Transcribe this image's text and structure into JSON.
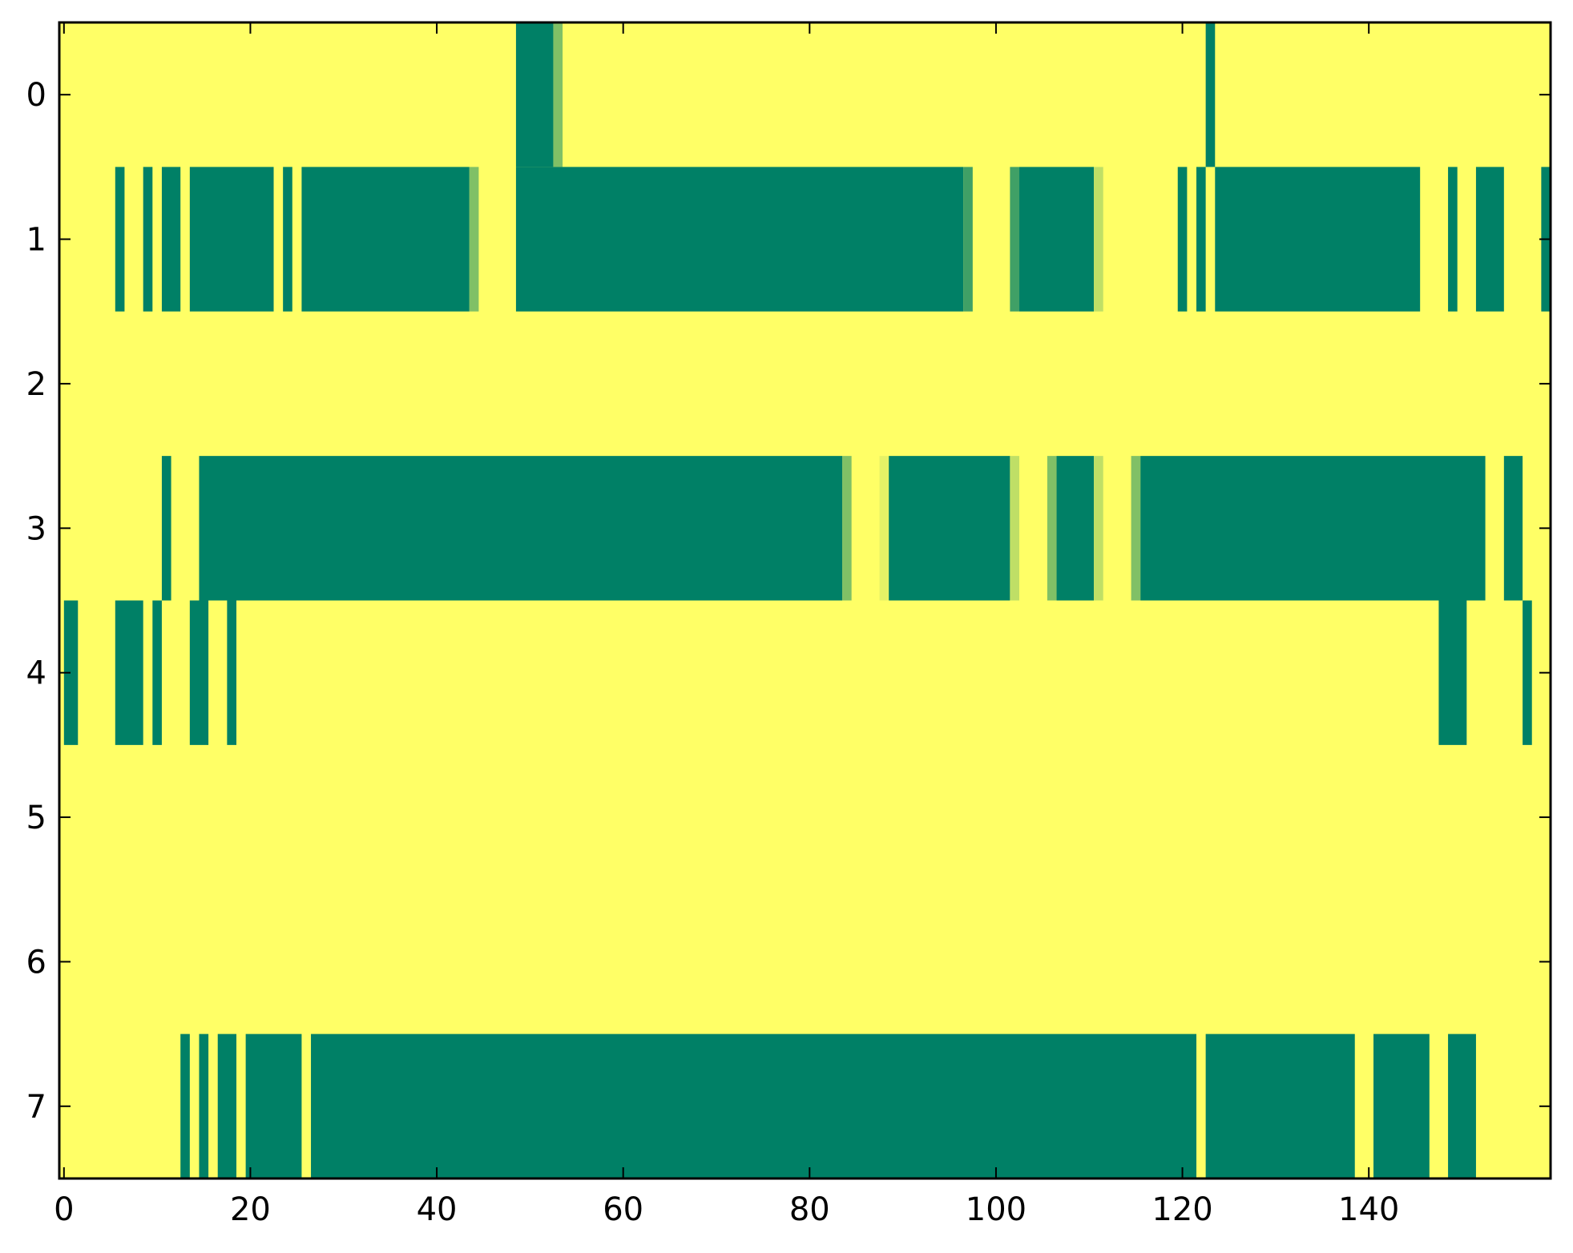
{
  "chart_data": {
    "type": "heatmap",
    "title": "",
    "xlabel": "",
    "ylabel": "",
    "xlim": [
      -0.5,
      159.5
    ],
    "ylim": [
      -0.5,
      7.5
    ],
    "y_inverted": true,
    "grid": false,
    "x_ticks": [
      0,
      20,
      40,
      60,
      80,
      100,
      120,
      140
    ],
    "x_tick_labels": [
      "0",
      "20",
      "40",
      "60",
      "80",
      "100",
      "120",
      "140"
    ],
    "y_ticks": [
      0,
      1,
      2,
      3,
      4,
      5,
      6,
      7
    ],
    "y_tick_labels": [
      "0",
      "1",
      "2",
      "3",
      "4",
      "5",
      "6",
      "7"
    ],
    "colors": {
      "low": "#008066",
      "high": "#ffff66"
    },
    "value_range": [
      0,
      1
    ],
    "default_value": 1,
    "rows": [
      {
        "row": 0,
        "cells": [
          {
            "x0": 49,
            "x1": 52,
            "v": 0
          },
          {
            "x0": 53,
            "x1": 53,
            "v": 0.5
          },
          {
            "x0": 123,
            "x1": 123,
            "v": 0
          }
        ]
      },
      {
        "row": 1,
        "cells": [
          {
            "x0": 6,
            "x1": 6,
            "v": 0
          },
          {
            "x0": 9,
            "x1": 9,
            "v": 0
          },
          {
            "x0": 11,
            "x1": 12,
            "v": 0
          },
          {
            "x0": 14,
            "x1": 22,
            "v": 0
          },
          {
            "x0": 24,
            "x1": 24,
            "v": 0
          },
          {
            "x0": 26,
            "x1": 43,
            "v": 0
          },
          {
            "x0": 44,
            "x1": 44,
            "v": 0.5
          },
          {
            "x0": 49,
            "x1": 96,
            "v": 0
          },
          {
            "x0": 97,
            "x1": 97,
            "v": 0.25
          },
          {
            "x0": 102,
            "x1": 102,
            "v": 0.25
          },
          {
            "x0": 103,
            "x1": 110,
            "v": 0
          },
          {
            "x0": 111,
            "x1": 111,
            "v": 0.75
          },
          {
            "x0": 120,
            "x1": 120,
            "v": 0
          },
          {
            "x0": 122,
            "x1": 122,
            "v": 0
          },
          {
            "x0": 124,
            "x1": 145,
            "v": 0
          },
          {
            "x0": 149,
            "x1": 149,
            "v": 0
          },
          {
            "x0": 152,
            "x1": 154,
            "v": 0
          },
          {
            "x0": 159,
            "x1": 159,
            "v": 0
          }
        ]
      },
      {
        "row": 2,
        "cells": []
      },
      {
        "row": 3,
        "cells": [
          {
            "x0": 11,
            "x1": 11,
            "v": 0
          },
          {
            "x0": 15,
            "x1": 83,
            "v": 0
          },
          {
            "x0": 84,
            "x1": 84,
            "v": 0.5
          },
          {
            "x0": 88,
            "x1": 88,
            "v": 0.9
          },
          {
            "x0": 89,
            "x1": 101,
            "v": 0
          },
          {
            "x0": 102,
            "x1": 102,
            "v": 0.75
          },
          {
            "x0": 106,
            "x1": 106,
            "v": 0.5
          },
          {
            "x0": 107,
            "x1": 110,
            "v": 0
          },
          {
            "x0": 111,
            "x1": 111,
            "v": 0.75
          },
          {
            "x0": 115,
            "x1": 115,
            "v": 0.5
          },
          {
            "x0": 116,
            "x1": 152,
            "v": 0
          },
          {
            "x0": 155,
            "x1": 156,
            "v": 0
          }
        ]
      },
      {
        "row": 4,
        "cells": [
          {
            "x0": 0.5,
            "x1": 1,
            "v": 0
          },
          {
            "x0": 6,
            "x1": 8,
            "v": 0
          },
          {
            "x0": 10,
            "x1": 10,
            "v": 0
          },
          {
            "x0": 14,
            "x1": 15,
            "v": 0
          },
          {
            "x0": 18,
            "x1": 18,
            "v": 0
          },
          {
            "x0": 148,
            "x1": 150,
            "v": 0
          },
          {
            "x0": 157,
            "x1": 157,
            "v": 0
          }
        ]
      },
      {
        "row": 5,
        "cells": []
      },
      {
        "row": 6,
        "cells": []
      },
      {
        "row": 7,
        "cells": [
          {
            "x0": 13,
            "x1": 13,
            "v": 0
          },
          {
            "x0": 15,
            "x1": 15,
            "v": 0
          },
          {
            "x0": 17,
            "x1": 18,
            "v": 0
          },
          {
            "x0": 20,
            "x1": 25,
            "v": 0
          },
          {
            "x0": 27,
            "x1": 121,
            "v": 0
          },
          {
            "x0": 123,
            "x1": 138,
            "v": 0
          },
          {
            "x0": 141,
            "x1": 146,
            "v": 0
          },
          {
            "x0": 149,
            "x1": 151,
            "v": 0
          }
        ]
      }
    ]
  }
}
